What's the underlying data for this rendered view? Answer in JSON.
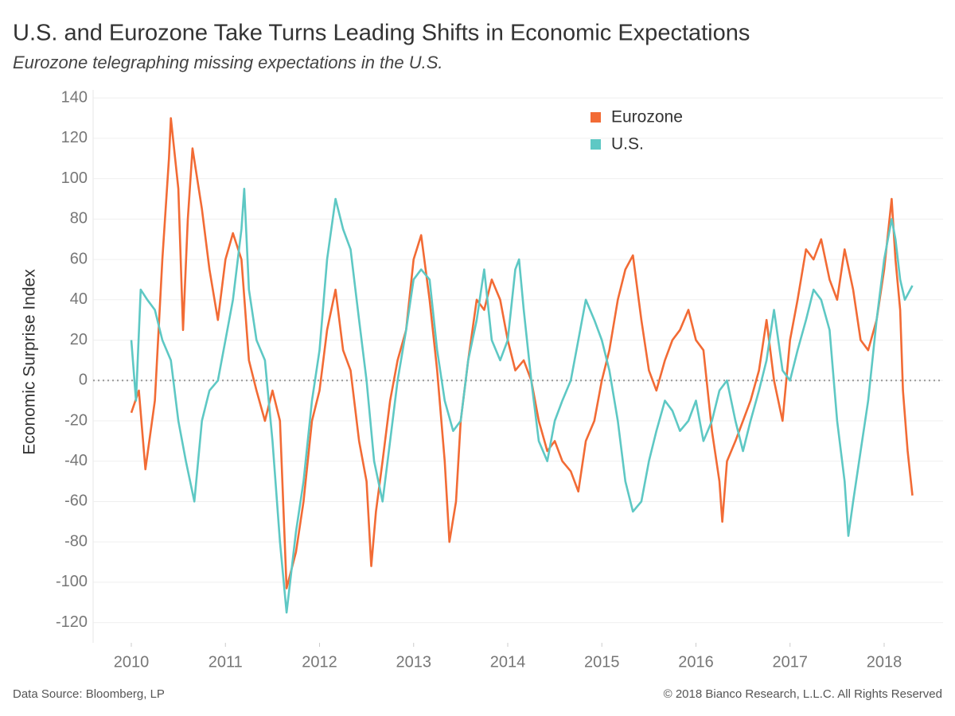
{
  "chart_data": {
    "type": "line",
    "title": "U.S. and Eurozone Take Turns Leading Shifts in Economic Expectations",
    "subtitle": "Eurozone telegraphing missing expectations in the U.S.",
    "y_label": "Economic Surprise Index",
    "source": "Data Source: Bloomberg, LP",
    "copyright": "© 2018 Bianco Research, L.L.C. All Rights Reserved",
    "xlim": [
      2009.594,
      2018.626
    ],
    "xticks": [
      2010,
      2011,
      2012,
      2013,
      2014,
      2015,
      2016,
      2017,
      2018
    ],
    "ylim": [
      -130,
      144
    ],
    "yticks": [
      -120,
      -100,
      -80,
      -60,
      -40,
      -20,
      0,
      20,
      40,
      60,
      80,
      100,
      120,
      140
    ],
    "grid": true,
    "legend": "top-right",
    "series": [
      {
        "name": "Eurozone",
        "color": "#f26b35",
        "x": [
          2010.0,
          2010.08,
          2010.15,
          2010.25,
          2010.33,
          2010.4,
          2010.42,
          2010.5,
          2010.55,
          2010.6,
          2010.65,
          2010.75,
          2010.83,
          2010.92,
          2011.0,
          2011.08,
          2011.17,
          2011.25,
          2011.33,
          2011.42,
          2011.5,
          2011.58,
          2011.65,
          2011.75,
          2011.83,
          2011.92,
          2012.0,
          2012.08,
          2012.17,
          2012.25,
          2012.33,
          2012.42,
          2012.5,
          2012.55,
          2012.6,
          2012.67,
          2012.75,
          2012.83,
          2012.92,
          2013.0,
          2013.08,
          2013.17,
          2013.25,
          2013.33,
          2013.38,
          2013.45,
          2013.5,
          2013.58,
          2013.67,
          2013.75,
          2013.83,
          2013.92,
          2014.0,
          2014.08,
          2014.17,
          2014.25,
          2014.33,
          2014.42,
          2014.5,
          2014.58,
          2014.67,
          2014.75,
          2014.83,
          2014.92,
          2015.0,
          2015.08,
          2015.17,
          2015.25,
          2015.33,
          2015.42,
          2015.5,
          2015.58,
          2015.67,
          2015.75,
          2015.83,
          2015.92,
          2016.0,
          2016.08,
          2016.17,
          2016.25,
          2016.28,
          2016.33,
          2016.42,
          2016.5,
          2016.58,
          2016.67,
          2016.75,
          2016.83,
          2016.92,
          2017.0,
          2017.08,
          2017.17,
          2017.25,
          2017.33,
          2017.42,
          2017.5,
          2017.58,
          2017.67,
          2017.75,
          2017.83,
          2017.92,
          2018.0,
          2018.08,
          2018.12,
          2018.17,
          2018.2,
          2018.25,
          2018.3
        ],
        "values": [
          -16,
          -5,
          -44,
          -10,
          60,
          110,
          130,
          95,
          25,
          80,
          115,
          85,
          55,
          30,
          60,
          73,
          60,
          10,
          -5,
          -20,
          -5,
          -20,
          -103,
          -85,
          -60,
          -20,
          -5,
          25,
          45,
          15,
          5,
          -30,
          -50,
          -92,
          -65,
          -40,
          -10,
          10,
          25,
          60,
          72,
          40,
          5,
          -40,
          -80,
          -60,
          -20,
          10,
          40,
          35,
          50,
          40,
          20,
          5,
          10,
          0,
          -20,
          -35,
          -30,
          -40,
          -45,
          -55,
          -30,
          -20,
          0,
          15,
          40,
          55,
          62,
          30,
          5,
          -5,
          10,
          20,
          25,
          35,
          20,
          15,
          -25,
          -50,
          -70,
          -40,
          -30,
          -20,
          -10,
          5,
          30,
          0,
          -20,
          20,
          40,
          65,
          60,
          70,
          50,
          40,
          65,
          45,
          20,
          15,
          30,
          55,
          90,
          60,
          35,
          -5,
          -35,
          -57
        ]
      },
      {
        "name": "U.S.",
        "color": "#5ec8c4",
        "x": [
          2010.0,
          2010.05,
          2010.1,
          2010.17,
          2010.25,
          2010.33,
          2010.42,
          2010.5,
          2010.58,
          2010.67,
          2010.75,
          2010.83,
          2010.92,
          2011.0,
          2011.08,
          2011.17,
          2011.2,
          2011.25,
          2011.33,
          2011.42,
          2011.5,
          2011.58,
          2011.65,
          2011.7,
          2011.75,
          2011.83,
          2011.92,
          2012.0,
          2012.08,
          2012.17,
          2012.25,
          2012.33,
          2012.42,
          2012.5,
          2012.58,
          2012.67,
          2012.75,
          2012.83,
          2012.92,
          2013.0,
          2013.08,
          2013.17,
          2013.25,
          2013.33,
          2013.42,
          2013.5,
          2013.58,
          2013.67,
          2013.75,
          2013.83,
          2013.92,
          2014.0,
          2014.08,
          2014.12,
          2014.17,
          2014.25,
          2014.33,
          2014.42,
          2014.5,
          2014.58,
          2014.67,
          2014.75,
          2014.83,
          2014.92,
          2015.0,
          2015.08,
          2015.17,
          2015.25,
          2015.33,
          2015.42,
          2015.5,
          2015.58,
          2015.67,
          2015.75,
          2015.83,
          2015.92,
          2016.0,
          2016.08,
          2016.17,
          2016.25,
          2016.33,
          2016.42,
          2016.5,
          2016.58,
          2016.67,
          2016.75,
          2016.83,
          2016.92,
          2017.0,
          2017.08,
          2017.17,
          2017.25,
          2017.33,
          2017.42,
          2017.5,
          2017.58,
          2017.62,
          2017.67,
          2017.75,
          2017.83,
          2017.92,
          2018.0,
          2018.08,
          2018.12,
          2018.17,
          2018.22,
          2018.3
        ],
        "values": [
          20,
          -10,
          45,
          40,
          35,
          20,
          10,
          -20,
          -40,
          -60,
          -20,
          -5,
          0,
          20,
          40,
          75,
          95,
          45,
          20,
          10,
          -30,
          -80,
          -115,
          -95,
          -75,
          -50,
          -10,
          15,
          60,
          90,
          75,
          65,
          30,
          0,
          -40,
          -60,
          -30,
          0,
          25,
          50,
          55,
          50,
          15,
          -10,
          -25,
          -20,
          10,
          30,
          55,
          20,
          10,
          20,
          55,
          60,
          35,
          0,
          -30,
          -40,
          -20,
          -10,
          0,
          20,
          40,
          30,
          20,
          5,
          -20,
          -50,
          -65,
          -60,
          -40,
          -25,
          -10,
          -15,
          -25,
          -20,
          -10,
          -30,
          -20,
          -5,
          0,
          -20,
          -35,
          -20,
          -5,
          10,
          35,
          5,
          0,
          15,
          30,
          45,
          40,
          25,
          -20,
          -50,
          -77,
          -60,
          -35,
          -10,
          30,
          60,
          80,
          70,
          50,
          40,
          47
        ]
      }
    ]
  }
}
